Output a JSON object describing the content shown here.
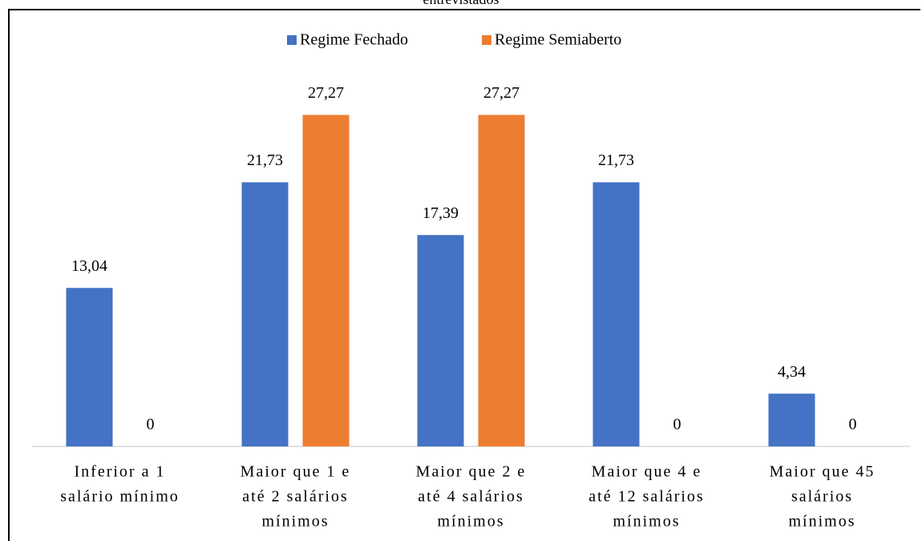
{
  "chart_data": {
    "type": "bar",
    "title": "entrevistados",
    "categories": [
      [
        "Inferior a 1",
        "salário mínimo"
      ],
      [
        "Maior que 1 e",
        "até 2 salários",
        "mínimos"
      ],
      [
        "Maior que 2 e",
        "até 4 salários",
        "mínimos"
      ],
      [
        "Maior que 4 e",
        "até 12 salários",
        "mínimos"
      ],
      [
        "Maior que 45",
        "salários",
        "mínimos"
      ]
    ],
    "series": [
      {
        "name": "Regime Fechado",
        "color": "#4472c4",
        "values": [
          13.04,
          21.73,
          17.39,
          21.73,
          4.34
        ],
        "value_labels": [
          "13,04",
          "21,73",
          "17,39",
          "21,73",
          "4,34"
        ]
      },
      {
        "name": "Regime Semiaberto",
        "color": "#ed7d31",
        "values": [
          0,
          27.27,
          27.27,
          0,
          0
        ],
        "value_labels": [
          "0",
          "27,27",
          "27,27",
          "0",
          "0"
        ]
      }
    ],
    "ylim": [
      0,
      30
    ],
    "legend": "top"
  }
}
